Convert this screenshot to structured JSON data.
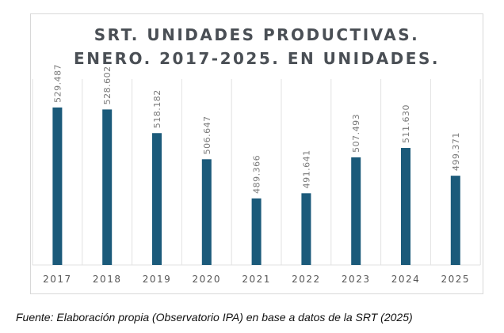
{
  "chart_data": {
    "type": "bar",
    "title": [
      "SRT. UNIDADES  PRODUCTIVAS.",
      "ENERO. 2017-2025. EN UNIDADES."
    ],
    "categories": [
      "2017",
      "2018",
      "2019",
      "2020",
      "2021",
      "2022",
      "2023",
      "2024",
      "2025"
    ],
    "values": [
      529487,
      528602,
      518182,
      506647,
      489366,
      491641,
      507493,
      511630,
      499371
    ],
    "data_labels": [
      "529.487",
      "528.602",
      "518.182",
      "506.647",
      "489.366",
      "491.641",
      "507.493",
      "511.630",
      "499.371"
    ],
    "xlabel": "",
    "ylabel": "",
    "ylim": [
      460000,
      542000
    ],
    "grid": "vertical",
    "bar_color": "#1b5a7a"
  },
  "caption": "Fuente: Elaboración propia (Observatorio IPA) en base a datos de la SRT (2025)"
}
